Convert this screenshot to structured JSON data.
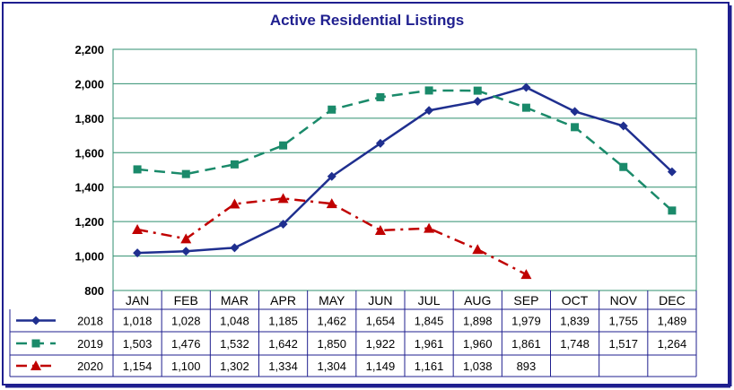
{
  "chart_data": {
    "type": "line",
    "title": "Active Residential Listings",
    "categories": [
      "JAN",
      "FEB",
      "MAR",
      "APR",
      "MAY",
      "JUN",
      "JUL",
      "AUG",
      "SEP",
      "OCT",
      "NOV",
      "DEC"
    ],
    "ylim": [
      800,
      2200
    ],
    "yticks": [
      "800",
      "1,000",
      "1,200",
      "1,400",
      "1,600",
      "1,800",
      "2,000",
      "2,200"
    ],
    "ytick_values": [
      800,
      1000,
      1200,
      1400,
      1600,
      1800,
      2000,
      2200
    ],
    "grid": true,
    "legend": "data-table-left",
    "series": [
      {
        "name": "2018",
        "color": "#1f2f8f",
        "marker": "diamond",
        "dash": "solid",
        "values": [
          1018,
          1028,
          1048,
          1185,
          1462,
          1654,
          1845,
          1898,
          1979,
          1839,
          1755,
          1489
        ],
        "labels": [
          "1,018",
          "1,028",
          "1,048",
          "1,185",
          "1,462",
          "1,654",
          "1,845",
          "1,898",
          "1,979",
          "1,839",
          "1,755",
          "1,489"
        ]
      },
      {
        "name": "2019",
        "color": "#1a8a6a",
        "marker": "square",
        "dash": "dash",
        "values": [
          1503,
          1476,
          1532,
          1642,
          1850,
          1922,
          1961,
          1960,
          1861,
          1748,
          1517,
          1264
        ],
        "labels": [
          "1,503",
          "1,476",
          "1,532",
          "1,642",
          "1,850",
          "1,922",
          "1,961",
          "1,960",
          "1,861",
          "1,748",
          "1,517",
          "1,264"
        ]
      },
      {
        "name": "2020",
        "color": "#c00000",
        "marker": "triangle",
        "dash": "dashdot",
        "values": [
          1154,
          1100,
          1302,
          1334,
          1304,
          1149,
          1161,
          1038,
          893,
          null,
          null,
          null
        ],
        "labels": [
          "1,154",
          "1,100",
          "1,302",
          "1,334",
          "1,304",
          "1,149",
          "1,161",
          "1,038",
          "893",
          "",
          "",
          ""
        ]
      }
    ]
  }
}
